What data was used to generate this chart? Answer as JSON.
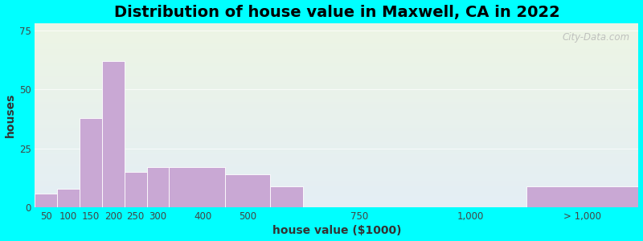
{
  "title": "Distribution of house value in Maxwell, CA in 2022",
  "xlabel": "house value ($1000)",
  "ylabel": "houses",
  "tick_positions": [
    50,
    100,
    150,
    200,
    250,
    300,
    400,
    500,
    750,
    1000,
    1250
  ],
  "tick_labels": [
    "50",
    "100",
    "150",
    "200",
    "250",
    "300",
    "400",
    "500",
    "750",
    "1,000",
    "> 1,000"
  ],
  "bin_edges": [
    25,
    75,
    125,
    175,
    225,
    275,
    325,
    450,
    550,
    625,
    1125,
    1375
  ],
  "bar_values": [
    6,
    8,
    38,
    62,
    15,
    17,
    17,
    14,
    9,
    0,
    9
  ],
  "bar_color": "#c9a8d4",
  "yticks": [
    0,
    25,
    50,
    75
  ],
  "ylim": [
    0,
    78
  ],
  "xlim": [
    25,
    1375
  ],
  "background_outer": "#00FFFF",
  "background_inner_top": "#edf5e4",
  "background_inner_bottom": "#e4eef5",
  "title_fontsize": 14,
  "axis_label_fontsize": 10,
  "tick_fontsize": 8.5,
  "watermark_text": "City-Data.com"
}
